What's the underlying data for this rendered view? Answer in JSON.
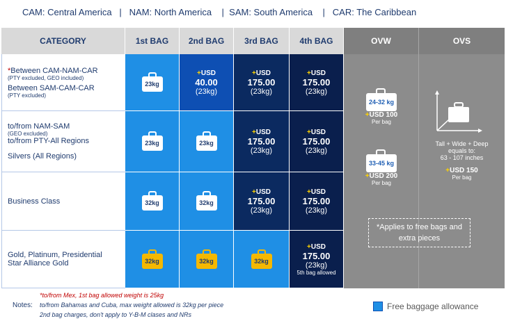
{
  "legend_top": "CAM: Central America   |   NAM: North America    |  SAM: South America    |   CAR: The Caribbean",
  "headers": [
    "CATEGORY",
    "1st BAG",
    "2nd BAG",
    "3rd BAG",
    "4th BAG",
    "OVW",
    "OVS"
  ],
  "rows": [
    {
      "cat_lines": [
        {
          "text": "*Between CAM-NAM-CAR",
          "size": "main"
        },
        {
          "text": "(PTY excluded, GEO included)",
          "size": "sub"
        },
        {
          "text": "Between SAM-CAM-CAR",
          "size": "main"
        },
        {
          "text": "(PTY excluded)",
          "size": "sub"
        }
      ],
      "bag1": "23kg",
      "bag2": {
        "usd": "+USD",
        "amount": "40.00",
        "weight": "(23kg)"
      },
      "bag3": {
        "usd": "+USD",
        "amount": "175.00",
        "weight": "(23kg)"
      },
      "bag4": {
        "usd": "+USD",
        "amount": "175.00",
        "weight": "(23kg)"
      }
    },
    {
      "cat_lines": [
        {
          "text": "to/from NAM-SAM",
          "size": "main"
        },
        {
          "text": "(GEO excluded)",
          "size": "sub"
        },
        {
          "text": "to/from PTY-All Regions",
          "size": "main"
        },
        {
          "text": "Silvers (All Regions)",
          "size": "main"
        }
      ],
      "bag1": "23kg",
      "bag2": "23kg",
      "bag3": {
        "usd": "+USD",
        "amount": "175.00",
        "weight": "(23kg)"
      },
      "bag4": {
        "usd": "+USD",
        "amount": "175.00",
        "weight": "(23kg)"
      }
    },
    {
      "cat_lines": [
        {
          "text": "Business Class",
          "size": "main"
        }
      ],
      "bag1": "32kg",
      "bag2": "32kg",
      "bag3": {
        "usd": "+USD",
        "amount": "175.00",
        "weight": "(23kg)"
      },
      "bag4": {
        "usd": "+USD",
        "amount": "175.00",
        "weight": "(23kg)"
      }
    },
    {
      "cat_lines": [
        {
          "text": "Gold, Platinum, Presidential",
          "size": "main"
        },
        {
          "text": "Star Alliance Gold",
          "size": "main"
        }
      ],
      "bag1": "32kg",
      "bag2": "32kg",
      "bag3": "32kg",
      "bag4": {
        "usd": "+USD",
        "amount": "175.00",
        "weight": "(23kg)",
        "note": "5th bag allowed"
      }
    }
  ],
  "ovw": {
    "items": [
      {
        "weight": "24-32 kg",
        "price": "+USD 100",
        "per": "Per bag"
      },
      {
        "weight": "33-45 kg",
        "price": "+USD 200",
        "per": "Per bag"
      }
    ],
    "applies": "*Applies to free bags and extra pieces"
  },
  "ovs": {
    "dims": "Tall + Wide + Deep equals to:",
    "range": "63 - 107 inches",
    "price": "+USD 150",
    "per": "Per bag"
  },
  "notes": {
    "label": "Notes:",
    "lines": [
      "*to/from Mex, 1st bag allowed weight is 25kg",
      "to/from Bahamas and Cuba, max weight allowed is 32kg per piece",
      "2nd bag charges, don't apply to Y-B-M clases and NRs"
    ]
  },
  "legend_key": "Free baggage allowance",
  "colors": {
    "free": "#1f8fe5",
    "charge_mid": "#0e4fb3",
    "charge_dark": "#0b2a60",
    "oversize": "#8c8c8c",
    "gold": "#f5b800"
  }
}
